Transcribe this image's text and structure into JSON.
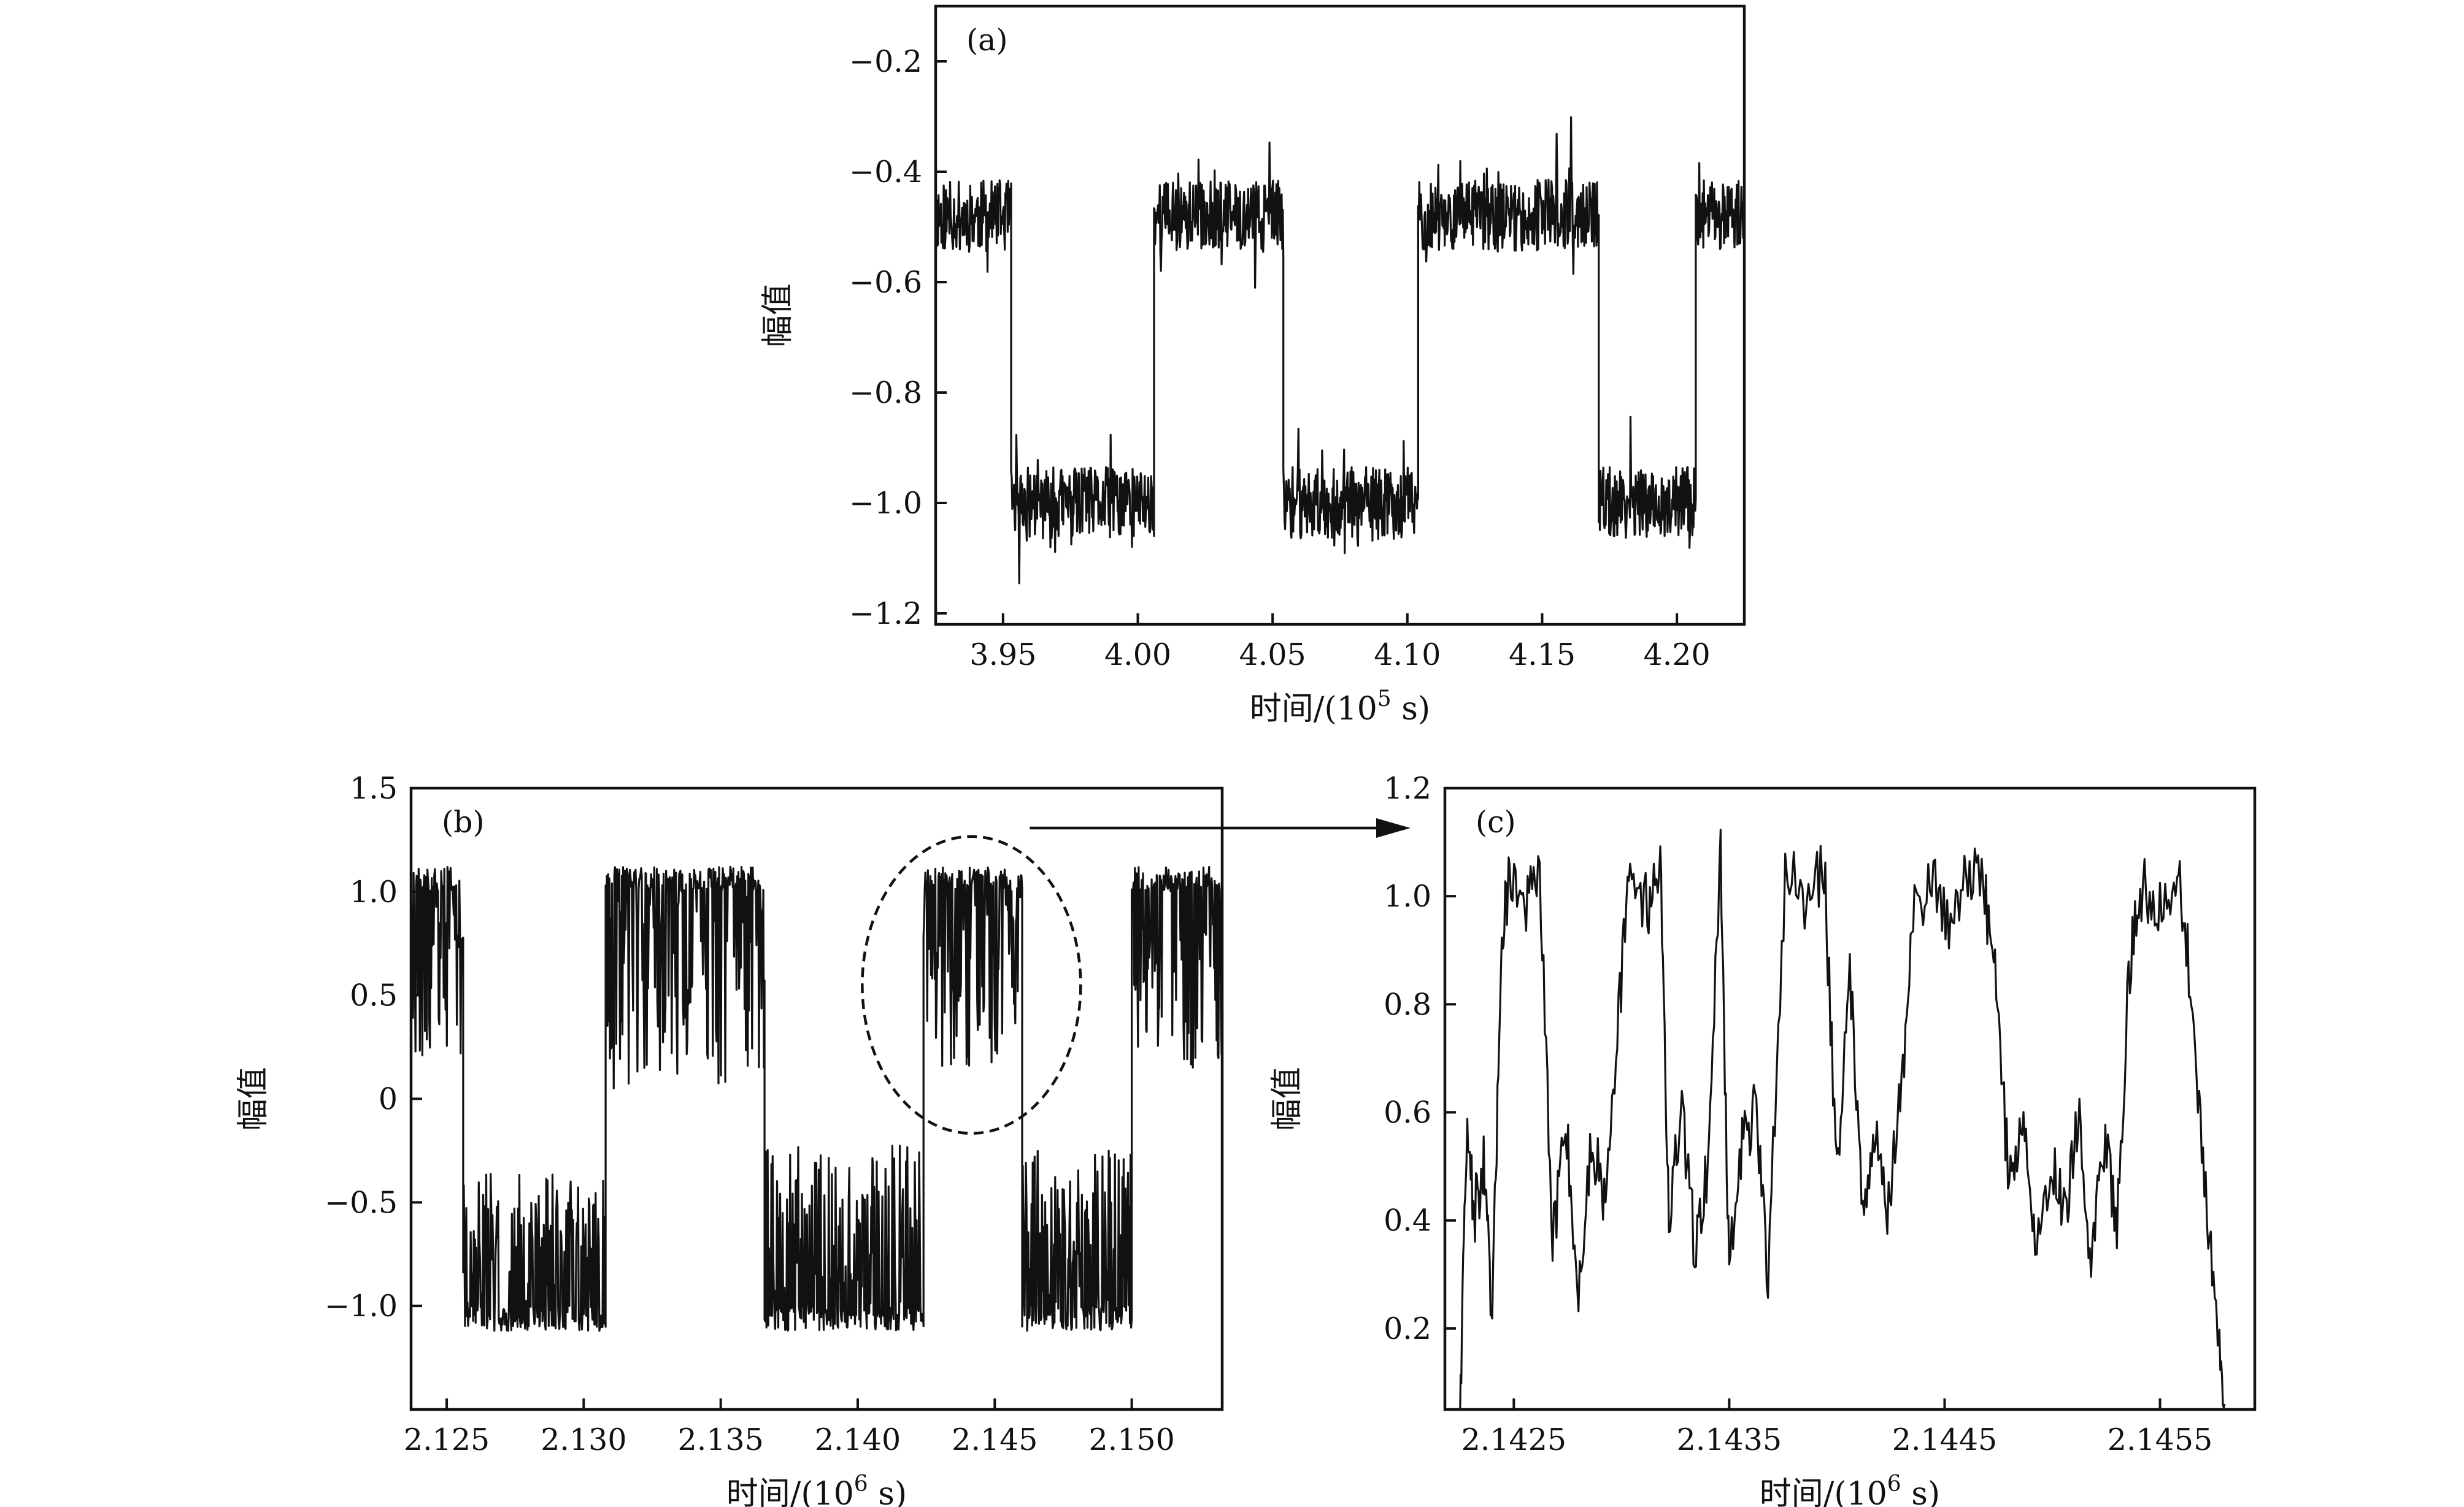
{
  "chart_data": [
    {
      "id": "a",
      "type": "line",
      "panel_label": "(a)",
      "xlabel": "时间/(10",
      "xlabel_exp": "5",
      "xlabel_unit": " s)",
      "ylabel": "幅值",
      "xlim": [
        3.925,
        4.225
      ],
      "ylim": [
        -1.22,
        -0.1
      ],
      "xticks": [
        3.95,
        4.0,
        4.05,
        4.1,
        4.15,
        4.2
      ],
      "xtick_labels": [
        "3.95",
        "4.00",
        "4.05",
        "4.10",
        "4.15",
        "4.20"
      ],
      "yticks": [
        -0.2,
        -0.4,
        -0.6,
        -0.8,
        -1.0,
        -1.2
      ],
      "ytick_labels": [
        "−0.2",
        "−0.4",
        "−0.6",
        "−0.8",
        "−1.0",
        "−1.2"
      ],
      "series": [
        {
          "levels": {
            "high": -0.48,
            "low": -1.0
          },
          "noise": 0.065,
          "segments": [
            {
              "x": [
                3.925,
                3.953
              ],
              "level": "high"
            },
            {
              "x": [
                3.953,
                4.006
              ],
              "level": "low"
            },
            {
              "x": [
                4.006,
                4.054
              ],
              "level": "high"
            },
            {
              "x": [
                4.054,
                4.104
              ],
              "level": "low"
            },
            {
              "x": [
                4.104,
                4.171
              ],
              "level": "high"
            },
            {
              "x": [
                4.171,
                4.207
              ],
              "level": "low"
            },
            {
              "x": [
                4.207,
                4.225
              ],
              "level": "high"
            }
          ]
        }
      ]
    },
    {
      "id": "b",
      "type": "line",
      "panel_label": "(b)",
      "xlabel": "时间/(10",
      "xlabel_exp": "6",
      "xlabel_unit": " s)",
      "ylabel": "幅值",
      "xlim": [
        2.1237,
        2.1533
      ],
      "ylim": [
        -1.5,
        1.5
      ],
      "xticks": [
        2.125,
        2.13,
        2.135,
        2.14,
        2.145,
        2.15
      ],
      "xtick_labels": [
        "2.125",
        "2.130",
        "2.135",
        "2.140",
        "2.145",
        "2.150"
      ],
      "yticks": [
        1.5,
        1.0,
        0.5,
        0,
        -0.5,
        -1.0
      ],
      "ytick_labels": [
        "1.5",
        "1.0",
        "0.5",
        "0",
        "−0.5",
        "−1.0"
      ],
      "annotation": "dashed ellipse around 2.1425–2.1458 with arrow pointing to panel (c)",
      "series": [
        {
          "segments": [
            {
              "x": [
                2.1237,
                2.1256
              ],
              "range": [
                0.2,
                1.12
              ]
            },
            {
              "x": [
                2.1256,
                2.1308
              ],
              "range": [
                -1.12,
                -0.35
              ]
            },
            {
              "x": [
                2.1308,
                2.1366
              ],
              "range": [
                0.05,
                1.12
              ]
            },
            {
              "x": [
                2.1366,
                2.1424
              ],
              "range": [
                -1.12,
                -0.22
              ]
            },
            {
              "x": [
                2.1424,
                2.146
              ],
              "range": [
                0.15,
                1.12
              ]
            },
            {
              "x": [
                2.146,
                2.15
              ],
              "range": [
                -1.12,
                -0.25
              ]
            },
            {
              "x": [
                2.15,
                2.1533
              ],
              "range": [
                0.15,
                1.12
              ]
            }
          ]
        }
      ]
    },
    {
      "id": "c",
      "type": "line",
      "panel_label": "(c)",
      "xlabel": "时间/(10",
      "xlabel_exp": "6",
      "xlabel_unit": " s)",
      "ylabel": "幅值",
      "xlim": [
        2.14218,
        2.14594
      ],
      "ylim": [
        0.05,
        1.2
      ],
      "xticks": [
        2.1425,
        2.1435,
        2.1445,
        2.1455
      ],
      "xtick_labels": [
        "2.1425",
        "2.1435",
        "2.1445",
        "2.1455"
      ],
      "yticks": [
        1.2,
        1.0,
        0.8,
        0.6,
        0.4,
        0.2
      ],
      "ytick_labels": [
        "1.2",
        "1.0",
        "0.8",
        "0.6",
        "0.4",
        "0.2"
      ],
      "series": [
        {
          "knots": [
            [
              2.14225,
              0.06
            ],
            [
              2.14228,
              0.55
            ],
            [
              2.14232,
              0.42
            ],
            [
              2.14236,
              0.5
            ],
            [
              2.1424,
              0.2
            ],
            [
              2.14244,
              0.9
            ],
            [
              2.14248,
              1.05
            ],
            [
              2.14255,
              0.98
            ],
            [
              2.14262,
              1.04
            ],
            [
              2.14268,
              0.35
            ],
            [
              2.14274,
              0.6
            ],
            [
              2.1428,
              0.25
            ],
            [
              2.14286,
              0.55
            ],
            [
              2.14292,
              0.45
            ],
            [
              2.14298,
              0.75
            ],
            [
              2.14304,
              1.05
            ],
            [
              2.14312,
              0.98
            ],
            [
              2.14318,
              1.07
            ],
            [
              2.14322,
              0.4
            ],
            [
              2.14328,
              0.6
            ],
            [
              2.14334,
              0.35
            ],
            [
              2.1434,
              0.5
            ],
            [
              2.14346,
              1.08
            ],
            [
              2.1435,
              0.3
            ],
            [
              2.14356,
              0.55
            ],
            [
              2.14362,
              0.6
            ],
            [
              2.14368,
              0.3
            ],
            [
              2.14376,
              1.05
            ],
            [
              2.14386,
              0.98
            ],
            [
              2.14394,
              1.06
            ],
            [
              2.144,
              0.5
            ],
            [
              2.14406,
              0.85
            ],
            [
              2.14412,
              0.45
            ],
            [
              2.14418,
              0.55
            ],
            [
              2.14424,
              0.42
            ],
            [
              2.1443,
              0.65
            ],
            [
              2.14436,
              0.98
            ],
            [
              2.14444,
              1.03
            ],
            [
              2.14452,
              0.95
            ],
            [
              2.1446,
              1.05
            ],
            [
              2.14468,
              1.02
            ],
            [
              2.14474,
              0.85
            ],
            [
              2.1448,
              0.45
            ],
            [
              2.14486,
              0.6
            ],
            [
              2.14492,
              0.35
            ],
            [
              2.145,
              0.5
            ],
            [
              2.14506,
              0.42
            ],
            [
              2.14512,
              0.6
            ],
            [
              2.14518,
              0.3
            ],
            [
              2.14524,
              0.55
            ],
            [
              2.1453,
              0.4
            ],
            [
              2.14536,
              0.88
            ],
            [
              2.14542,
              1.02
            ],
            [
              2.1455,
              0.98
            ],
            [
              2.14558,
              1.05
            ],
            [
              2.14564,
              0.85
            ],
            [
              2.1457,
              0.5
            ],
            [
              2.14576,
              0.2
            ],
            [
              2.1458,
              0.06
            ]
          ]
        }
      ]
    }
  ]
}
